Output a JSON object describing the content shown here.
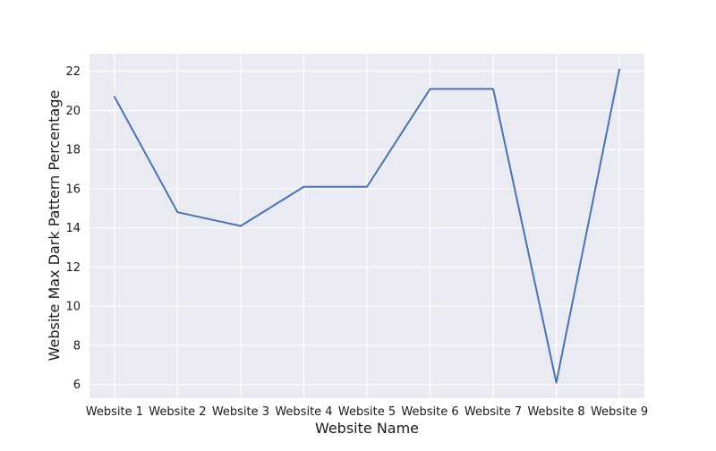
{
  "chart_data": {
    "type": "line",
    "categories": [
      "Website 1",
      "Website 2",
      "Website 3",
      "Website 4",
      "Website 5",
      "Website 6",
      "Website 7",
      "Website 8",
      "Website 9"
    ],
    "series": [
      {
        "values": [
          20.7,
          14.8,
          14.1,
          16.1,
          16.1,
          21.1,
          21.1,
          6.1,
          22.1
        ]
      }
    ],
    "xlabel": "Website Name",
    "ylabel": "Website Max Dark Pattern Percentage",
    "ylim": [
      5.3,
      22.9
    ],
    "yticks": [
      6,
      8,
      10,
      12,
      14,
      16,
      18,
      20,
      22
    ],
    "grid": true,
    "legend": "none",
    "colors": {
      "background": "#EAEAF2",
      "grid": "#FFFFFF",
      "line": "#4C72B0"
    }
  }
}
